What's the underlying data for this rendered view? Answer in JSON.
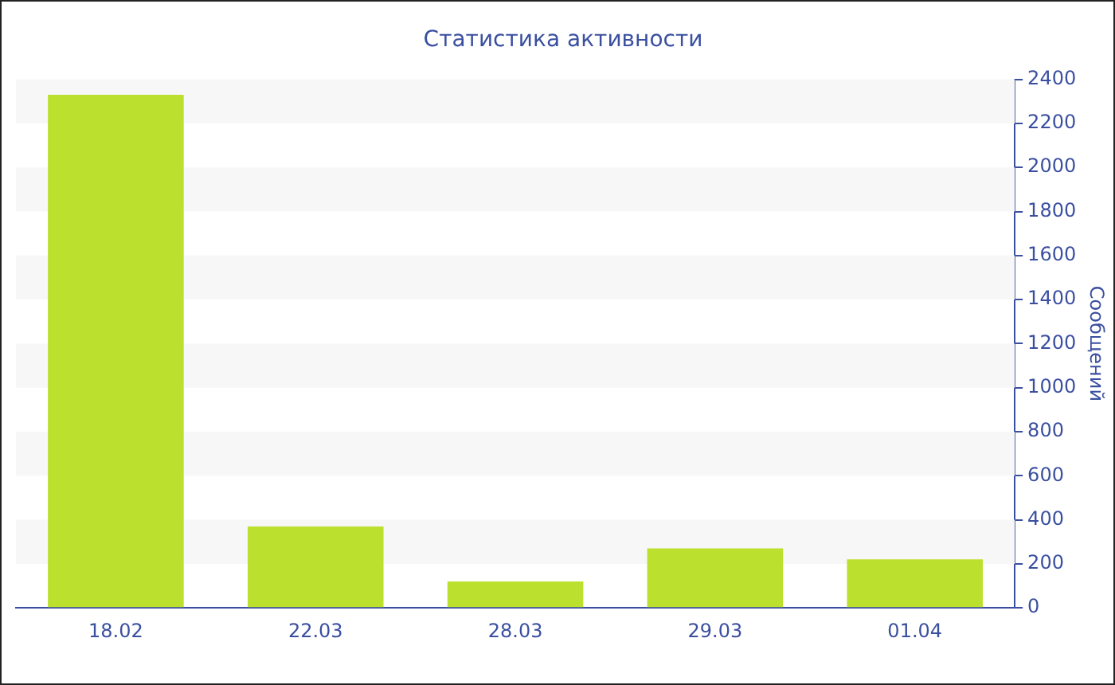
{
  "chart_data": {
    "type": "bar",
    "title": "Статистика активности",
    "y2label": "Сообщений",
    "categories": [
      "18.02",
      "22.03",
      "28.03",
      "29.03",
      "01.04"
    ],
    "series": [
      {
        "color": "#bce02e",
        "axis": "y2",
        "values": [
          2330,
          370,
          120,
          270,
          220
        ]
      }
    ],
    "y2lim": [
      0,
      2400
    ],
    "y2ticks": [
      0,
      200,
      400,
      600,
      800,
      1000,
      1200,
      1400,
      1600,
      1800,
      2000,
      2200,
      2400
    ],
    "bands": [
      {
        "axis": "y2",
        "from": 200,
        "to": 400,
        "color": "#f7f7f7"
      },
      {
        "axis": "y2",
        "from": 600,
        "to": 800,
        "color": "#f7f7f7"
      },
      {
        "axis": "y2",
        "from": 1000,
        "to": 1200,
        "color": "#f7f7f7"
      },
      {
        "axis": "y2",
        "from": 1400,
        "to": 1600,
        "color": "#f7f7f7"
      },
      {
        "axis": "y2",
        "from": 1800,
        "to": 2000,
        "color": "#f7f7f7"
      },
      {
        "axis": "y2",
        "from": 2200,
        "to": 2400,
        "color": "#f7f7f7"
      }
    ],
    "legend": false
  }
}
